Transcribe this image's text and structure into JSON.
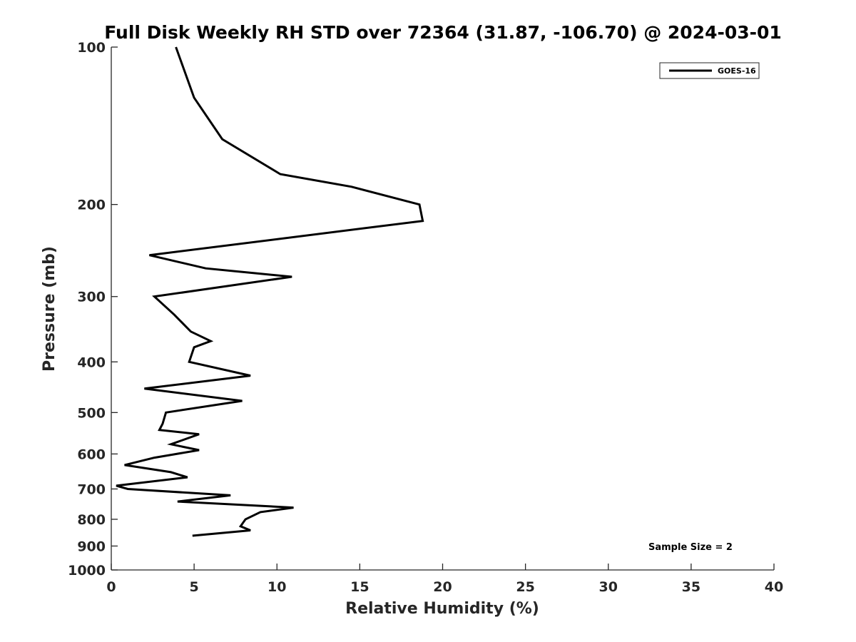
{
  "chart_data": {
    "type": "line",
    "title": "Full Disk Weekly RH STD over 72364 (31.87, -106.70) @ 2024-03-01",
    "xlabel": "Relative Humidity (%)",
    "ylabel": "Pressure (mb)",
    "xlim": [
      0,
      40
    ],
    "ylim": [
      1000,
      100
    ],
    "yscale": "log",
    "xticks": [
      0,
      5,
      10,
      15,
      20,
      25,
      30,
      35,
      40
    ],
    "yticks": [
      100,
      200,
      300,
      400,
      500,
      600,
      700,
      800,
      900,
      1000
    ],
    "grid": false,
    "legend_position": "top-right",
    "series": [
      {
        "name": "GOES-16",
        "color": "#000000",
        "points": [
          {
            "x": 3.9,
            "y": 100
          },
          {
            "x": 5.0,
            "y": 125
          },
          {
            "x": 6.7,
            "y": 150
          },
          {
            "x": 10.2,
            "y": 175
          },
          {
            "x": 14.5,
            "y": 185
          },
          {
            "x": 18.6,
            "y": 200
          },
          {
            "x": 18.8,
            "y": 215
          },
          {
            "x": 2.3,
            "y": 250
          },
          {
            "x": 5.7,
            "y": 265
          },
          {
            "x": 10.9,
            "y": 275
          },
          {
            "x": 2.6,
            "y": 300
          },
          {
            "x": 3.8,
            "y": 325
          },
          {
            "x": 4.8,
            "y": 350
          },
          {
            "x": 6.0,
            "y": 365
          },
          {
            "x": 5.0,
            "y": 375
          },
          {
            "x": 4.7,
            "y": 400
          },
          {
            "x": 8.4,
            "y": 425
          },
          {
            "x": 2.0,
            "y": 450
          },
          {
            "x": 7.9,
            "y": 475
          },
          {
            "x": 3.3,
            "y": 500
          },
          {
            "x": 3.1,
            "y": 525
          },
          {
            "x": 2.9,
            "y": 540
          },
          {
            "x": 5.3,
            "y": 550
          },
          {
            "x": 3.6,
            "y": 575
          },
          {
            "x": 5.3,
            "y": 590
          },
          {
            "x": 2.6,
            "y": 610
          },
          {
            "x": 0.8,
            "y": 630
          },
          {
            "x": 3.6,
            "y": 650
          },
          {
            "x": 4.6,
            "y": 665
          },
          {
            "x": 0.3,
            "y": 690
          },
          {
            "x": 1.0,
            "y": 700
          },
          {
            "x": 7.2,
            "y": 720
          },
          {
            "x": 4.0,
            "y": 740
          },
          {
            "x": 11.0,
            "y": 760
          },
          {
            "x": 9.0,
            "y": 775
          },
          {
            "x": 8.1,
            "y": 800
          },
          {
            "x": 7.8,
            "y": 825
          },
          {
            "x": 8.4,
            "y": 840
          },
          {
            "x": 4.9,
            "y": 860
          }
        ]
      }
    ],
    "annotations": [
      {
        "text": "Sample Size = 2"
      }
    ]
  }
}
